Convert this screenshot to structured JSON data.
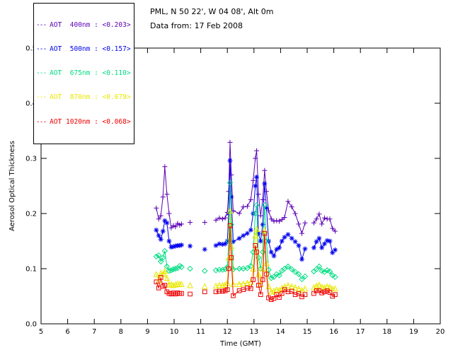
{
  "header": {
    "line1": "PML, N 50 22', W 04 08', Alt 0m",
    "line2": "Data from: 17 Feb 2008"
  },
  "legend": {
    "items": [
      {
        "label": "AOT  400nm : <0.203>",
        "color": "#5A00B4"
      },
      {
        "label": "AOT  500nm : <0.157>",
        "color": "#0000EE"
      },
      {
        "label": "AOT  675nm : <0.110>",
        "color": "#00DC82"
      },
      {
        "label": "AOT  870nm : <0.079>",
        "color": "#E8E800"
      },
      {
        "label": "AOT 1020nm : <0.068>",
        "color": "#EE0000"
      }
    ]
  },
  "chart_data": {
    "type": "line",
    "title": "",
    "xlabel": "Time (GMT)",
    "ylabel": "Aerosol Optical Thickness",
    "xlim": [
      5,
      20
    ],
    "ylim": [
      0.0,
      0.5
    ],
    "xticks": [
      5,
      6,
      7,
      8,
      9,
      10,
      11,
      12,
      13,
      14,
      15,
      16,
      17,
      18,
      19,
      20
    ],
    "yticks": [
      0.0,
      0.1,
      0.2,
      0.3,
      0.4,
      0.5
    ],
    "grid": false,
    "legend_position": "top-left",
    "gap_threshold_hours": 0.27,
    "x": [
      9.33,
      9.42,
      9.5,
      9.58,
      9.65,
      9.73,
      9.81,
      9.89,
      9.97,
      10.05,
      10.13,
      10.21,
      10.28,
      10.6,
      11.15,
      11.57,
      11.7,
      11.82,
      11.92,
      12.0,
      12.05,
      12.1,
      12.15,
      12.22,
      12.45,
      12.6,
      12.75,
      12.88,
      12.97,
      13.05,
      13.1,
      13.17,
      13.25,
      13.33,
      13.4,
      13.47,
      13.55,
      13.65,
      13.75,
      13.85,
      13.95,
      14.05,
      14.15,
      14.28,
      14.42,
      14.55,
      14.68,
      14.8,
      14.92,
      15.25,
      15.35,
      15.45,
      15.55,
      15.65,
      15.75,
      15.85,
      15.95,
      16.05
    ],
    "series": [
      {
        "name": "AOT 400nm",
        "mean": 0.203,
        "color": "#5A00B4",
        "marker": "plus",
        "values": [
          0.21,
          0.19,
          0.196,
          0.23,
          0.285,
          0.235,
          0.2,
          0.174,
          0.178,
          0.176,
          0.182,
          0.179,
          0.181,
          0.184,
          0.184,
          0.188,
          0.192,
          0.19,
          0.192,
          0.202,
          0.24,
          0.329,
          0.27,
          0.205,
          0.2,
          0.212,
          0.213,
          0.225,
          0.26,
          0.3,
          0.314,
          0.235,
          0.196,
          0.225,
          0.278,
          0.24,
          0.205,
          0.19,
          0.186,
          0.187,
          0.186,
          0.189,
          0.193,
          0.222,
          0.212,
          0.2,
          0.181,
          0.164,
          0.183,
          0.183,
          0.19,
          0.199,
          0.181,
          0.192,
          0.19,
          0.19,
          0.173,
          0.168
        ]
      },
      {
        "name": "AOT 500nm",
        "mean": 0.157,
        "color": "#0000EE",
        "marker": "asterisk",
        "values": [
          0.17,
          0.16,
          0.153,
          0.168,
          0.187,
          0.183,
          0.15,
          0.139,
          0.14,
          0.141,
          0.142,
          0.142,
          0.143,
          0.141,
          0.135,
          0.142,
          0.145,
          0.144,
          0.145,
          0.15,
          0.2,
          0.296,
          0.23,
          0.149,
          0.155,
          0.16,
          0.164,
          0.17,
          0.2,
          0.25,
          0.266,
          0.164,
          0.15,
          0.18,
          0.254,
          0.21,
          0.15,
          0.13,
          0.123,
          0.135,
          0.138,
          0.15,
          0.157,
          0.162,
          0.155,
          0.149,
          0.142,
          0.117,
          0.136,
          0.138,
          0.149,
          0.155,
          0.138,
          0.145,
          0.151,
          0.15,
          0.129,
          0.134
        ]
      },
      {
        "name": "AOT 675nm",
        "mean": 0.11,
        "color": "#00DC82",
        "marker": "diamond",
        "values": [
          0.122,
          0.124,
          0.113,
          0.12,
          0.132,
          0.104,
          0.096,
          0.097,
          0.099,
          0.1,
          0.101,
          0.105,
          0.103,
          0.1,
          0.096,
          0.097,
          0.098,
          0.098,
          0.099,
          0.103,
          0.15,
          0.256,
          0.18,
          0.099,
          0.1,
          0.1,
          0.101,
          0.105,
          0.13,
          0.2,
          0.215,
          0.12,
          0.1,
          0.13,
          0.215,
          0.15,
          0.098,
          0.083,
          0.085,
          0.09,
          0.088,
          0.096,
          0.1,
          0.104,
          0.099,
          0.094,
          0.09,
          0.081,
          0.086,
          0.095,
          0.099,
          0.104,
          0.096,
          0.094,
          0.097,
          0.095,
          0.088,
          0.085
        ]
      },
      {
        "name": "AOT 870nm",
        "mean": 0.079,
        "color": "#E8E800",
        "marker": "triangle",
        "values": [
          0.09,
          0.079,
          0.092,
          0.09,
          0.096,
          0.083,
          0.071,
          0.072,
          0.07,
          0.071,
          0.073,
          0.072,
          0.072,
          0.07,
          0.068,
          0.069,
          0.07,
          0.07,
          0.071,
          0.074,
          0.12,
          0.205,
          0.14,
          0.072,
          0.072,
          0.073,
          0.074,
          0.076,
          0.1,
          0.16,
          0.172,
          0.09,
          0.072,
          0.1,
          0.17,
          0.11,
          0.068,
          0.058,
          0.06,
          0.062,
          0.061,
          0.065,
          0.068,
          0.07,
          0.068,
          0.066,
          0.064,
          0.061,
          0.064,
          0.066,
          0.069,
          0.071,
          0.067,
          0.066,
          0.068,
          0.067,
          0.064,
          0.064
        ]
      },
      {
        "name": "AOT 1020nm",
        "mean": 0.068,
        "color": "#EE0000",
        "marker": "square",
        "values": [
          0.076,
          0.065,
          0.084,
          0.068,
          0.07,
          0.058,
          0.055,
          0.054,
          0.056,
          0.054,
          0.056,
          0.055,
          0.055,
          0.054,
          0.058,
          0.058,
          0.059,
          0.059,
          0.06,
          0.062,
          0.1,
          0.178,
          0.12,
          0.051,
          0.06,
          0.062,
          0.065,
          0.064,
          0.08,
          0.142,
          0.13,
          0.07,
          0.053,
          0.08,
          0.164,
          0.09,
          0.047,
          0.044,
          0.046,
          0.053,
          0.048,
          0.055,
          0.062,
          0.058,
          0.059,
          0.053,
          0.055,
          0.049,
          0.053,
          0.055,
          0.06,
          0.06,
          0.056,
          0.058,
          0.06,
          0.057,
          0.05,
          0.053
        ]
      }
    ]
  }
}
